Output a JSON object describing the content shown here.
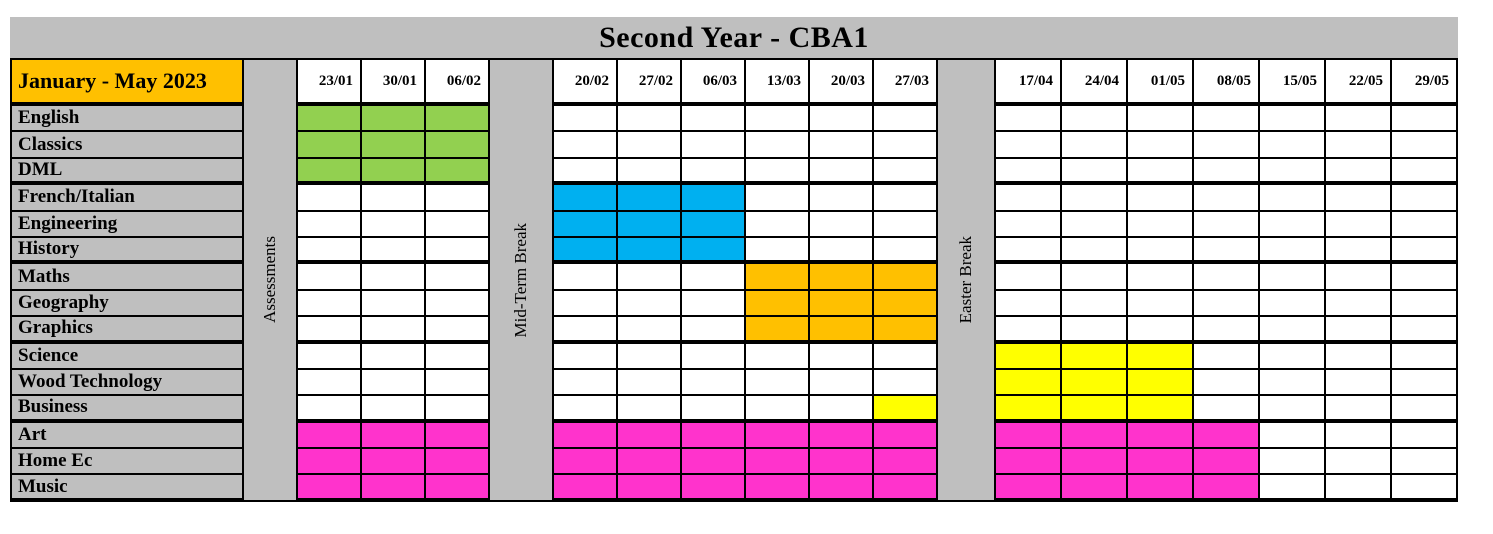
{
  "colors": {
    "panel_gray": "#BFBFBF",
    "period_gold": "#FFC000",
    "green": "#92D050",
    "blue": "#00B0F0",
    "orange": "#FFC000",
    "yellow": "#FFFF00",
    "magenta": "#FF33CC",
    "gridline_black": "#000000",
    "cell_white": "#FFFFFF"
  },
  "chart_data": {
    "type": "table",
    "title": "Second Year - CBA1",
    "period": "January - May 2023",
    "weeks": [
      "23/01",
      "30/01",
      "06/02",
      "20/02",
      "27/02",
      "06/03",
      "13/03",
      "20/03",
      "27/03",
      "17/04",
      "24/04",
      "01/05",
      "08/05",
      "15/05",
      "22/05",
      "29/05"
    ],
    "break_labels": {
      "assessments": "Assessments",
      "midterm": "Mid-Term Break",
      "easter": "Easter Break"
    },
    "break_positions": {
      "assessments": "before 23/01",
      "midterm": "between 06/02 and 20/02",
      "easter": "between 27/03 and 17/04"
    },
    "subjects": [
      {
        "name": "English",
        "color": "#92D050",
        "weeks": [
          "23/01",
          "30/01",
          "06/02"
        ]
      },
      {
        "name": "Classics",
        "color": "#92D050",
        "weeks": [
          "23/01",
          "30/01",
          "06/02"
        ]
      },
      {
        "name": "DML",
        "color": "#92D050",
        "weeks": [
          "23/01",
          "30/01",
          "06/02"
        ]
      },
      {
        "name": "French/Italian",
        "color": "#00B0F0",
        "weeks": [
          "20/02",
          "27/02",
          "06/03"
        ]
      },
      {
        "name": "Engineering",
        "color": "#00B0F0",
        "weeks": [
          "20/02",
          "27/02",
          "06/03"
        ]
      },
      {
        "name": "History",
        "color": "#00B0F0",
        "weeks": [
          "20/02",
          "27/02",
          "06/03"
        ]
      },
      {
        "name": "Maths",
        "color": "#FFC000",
        "weeks": [
          "13/03",
          "20/03",
          "27/03"
        ]
      },
      {
        "name": "Geography",
        "color": "#FFC000",
        "weeks": [
          "13/03",
          "20/03",
          "27/03"
        ]
      },
      {
        "name": "Graphics",
        "color": "#FFC000",
        "weeks": [
          "13/03",
          "20/03",
          "27/03"
        ]
      },
      {
        "name": "Science",
        "color": "#FFFF00",
        "weeks": [
          "17/04",
          "24/04",
          "01/05"
        ]
      },
      {
        "name": "Wood Technology",
        "color": "#FFFF00",
        "weeks": [
          "17/04",
          "24/04",
          "01/05"
        ]
      },
      {
        "name": "Business",
        "color": "#FFFF00",
        "weeks": [
          "27/03",
          "17/04",
          "24/04",
          "01/05"
        ]
      },
      {
        "name": "Art",
        "color": "#FF33CC",
        "weeks": [
          "23/01",
          "30/01",
          "06/02",
          "20/02",
          "27/02",
          "06/03",
          "13/03",
          "20/03",
          "27/03",
          "17/04",
          "24/04",
          "01/05",
          "08/05"
        ]
      },
      {
        "name": "Home Ec",
        "color": "#FF33CC",
        "weeks": [
          "23/01",
          "30/01",
          "06/02",
          "20/02",
          "27/02",
          "06/03",
          "13/03",
          "20/03",
          "27/03",
          "17/04",
          "24/04",
          "01/05",
          "08/05"
        ]
      },
      {
        "name": "Music",
        "color": "#FF33CC",
        "weeks": [
          "23/01",
          "30/01",
          "06/02",
          "20/02",
          "27/02",
          "06/03",
          "13/03",
          "20/03",
          "27/03",
          "17/04",
          "24/04",
          "01/05",
          "08/05"
        ]
      }
    ]
  }
}
